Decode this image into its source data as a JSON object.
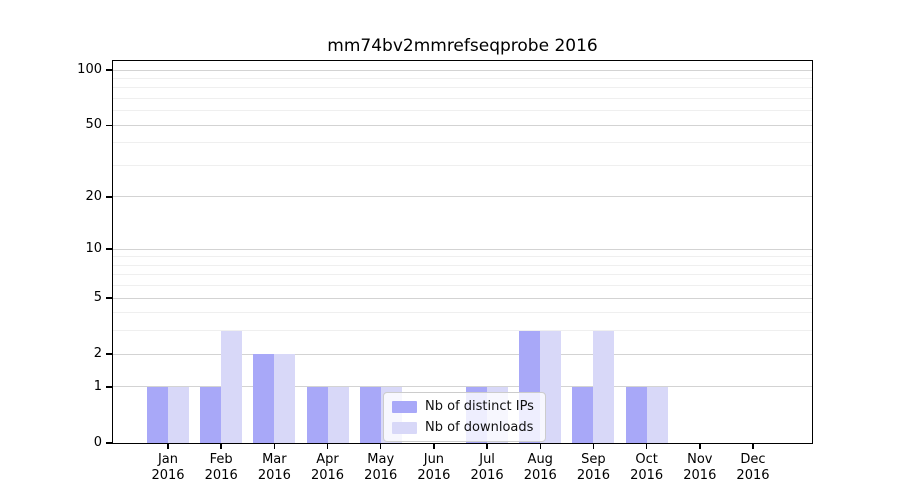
{
  "chart_data": {
    "type": "bar",
    "title": "mm74bv2mmrefseqprobe 2016",
    "yscale": "log1p",
    "ylim": [
      0,
      112
    ],
    "grid": true,
    "legend_position": "lower center",
    "ytick_labels": [
      100,
      50,
      20,
      10,
      5,
      2,
      1,
      0
    ],
    "y_minor_gridlines": [
      3,
      4,
      6,
      7,
      8,
      9,
      30,
      40,
      60,
      70,
      80,
      90
    ],
    "categories": [
      {
        "month": "Jan",
        "year": "2016"
      },
      {
        "month": "Feb",
        "year": "2016"
      },
      {
        "month": "Mar",
        "year": "2016"
      },
      {
        "month": "Apr",
        "year": "2016"
      },
      {
        "month": "May",
        "year": "2016"
      },
      {
        "month": "Jun",
        "year": "2016"
      },
      {
        "month": "Jul",
        "year": "2016"
      },
      {
        "month": "Aug",
        "year": "2016"
      },
      {
        "month": "Sep",
        "year": "2016"
      },
      {
        "month": "Oct",
        "year": "2016"
      },
      {
        "month": "Nov",
        "year": "2016"
      },
      {
        "month": "Dec",
        "year": "2016"
      }
    ],
    "series": [
      {
        "name": "Nb of distinct IPs",
        "color": "#a8a8f8",
        "values": [
          1,
          1,
          2,
          1,
          1,
          0,
          1,
          3,
          1,
          1,
          0,
          0
        ]
      },
      {
        "name": "Nb of downloads",
        "color": "#d8d8f8",
        "values": [
          1,
          3,
          2,
          1,
          1,
          0,
          1,
          3,
          3,
          1,
          0,
          0
        ]
      }
    ]
  }
}
